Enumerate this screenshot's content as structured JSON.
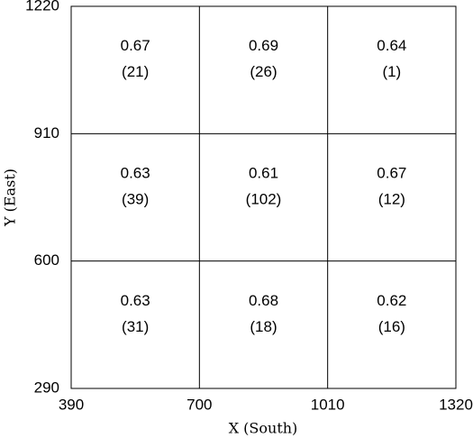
{
  "chart_data": {
    "type": "grid",
    "x_label": "X (South)",
    "y_label": "Y (East)",
    "xlim": [
      390,
      1320
    ],
    "ylim": [
      290,
      1220
    ],
    "xticks": [
      390,
      700,
      1010,
      1320
    ],
    "yticks": [
      290,
      600,
      910,
      1220
    ],
    "values": [
      [
        0.67,
        0.69,
        0.64
      ],
      [
        0.63,
        0.61,
        0.67
      ],
      [
        0.63,
        0.68,
        0.62
      ]
    ],
    "counts": [
      [
        21,
        26,
        1
      ],
      [
        39,
        102,
        12
      ],
      [
        31,
        18,
        16
      ]
    ],
    "count_labels": [
      [
        "(21)",
        "(26)",
        "(1)"
      ],
      [
        "(39)",
        "(102)",
        "(12)"
      ],
      [
        "(31)",
        "(18)",
        "(16)"
      ]
    ]
  }
}
